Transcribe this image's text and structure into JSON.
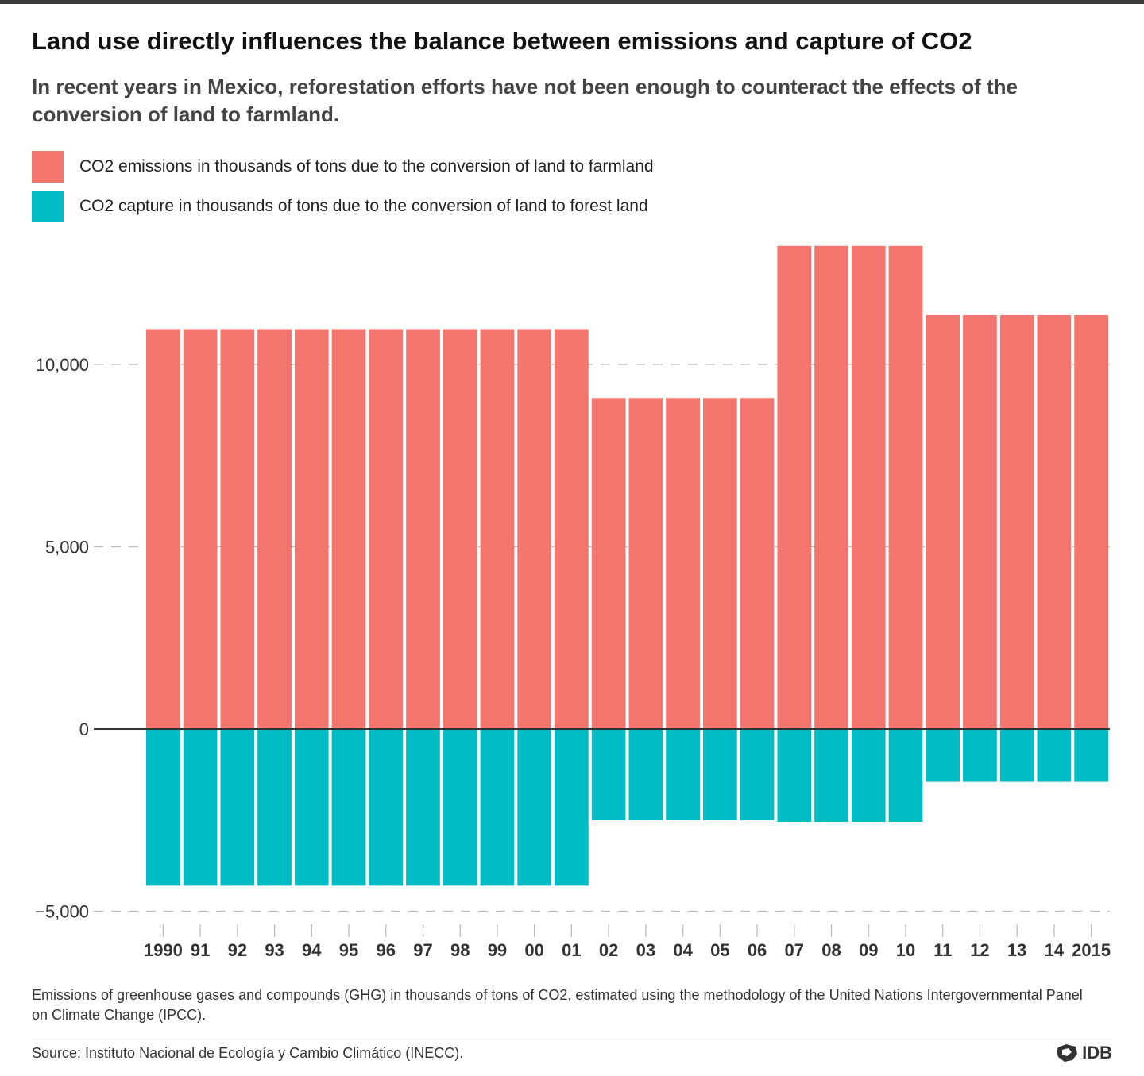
{
  "header": {
    "title": "Land use directly influences the balance between emissions and capture of CO2",
    "subtitle": "In recent years in Mexico, reforestation efforts have not been enough to counteract the effects of the conversion of land to farmland."
  },
  "legend": {
    "items": [
      {
        "label": "CO2 emissions in thousands of tons due to the conversion of land to farmland",
        "color": "#f4756d"
      },
      {
        "label": "CO2 capture in thousands of tons due to the conversion of land to forest land",
        "color": "#00bcc4"
      }
    ]
  },
  "chart_data": {
    "type": "bar",
    "title": "Land use directly influences the balance between emissions and capture of CO2",
    "xlabel": "",
    "ylabel": "",
    "ylim": [
      -5000,
      13300
    ],
    "yticks": [
      10000,
      5000,
      0,
      -5000
    ],
    "ytick_labels": [
      "10,000",
      "5,000",
      "0",
      "−5,000"
    ],
    "categories": [
      "1990",
      "91",
      "92",
      "93",
      "94",
      "95",
      "96",
      "97",
      "98",
      "99",
      "00",
      "01",
      "02",
      "03",
      "04",
      "05",
      "06",
      "07",
      "08",
      "09",
      "10",
      "11",
      "12",
      "13",
      "14",
      "2015"
    ],
    "series": [
      {
        "name": "CO2 emissions in thousands of tons due to the conversion of land to farmland",
        "color": "#f4756d",
        "values": [
          10970,
          10970,
          10970,
          10970,
          10970,
          10970,
          10970,
          10970,
          10970,
          10970,
          10970,
          10970,
          9080,
          9080,
          9080,
          9080,
          9080,
          13250,
          13250,
          13250,
          13250,
          11350,
          11350,
          11350,
          11350,
          11350
        ]
      },
      {
        "name": "CO2 capture in thousands of tons due to the conversion of land to forest land",
        "color": "#00bcc4",
        "values": [
          -4300,
          -4300,
          -4300,
          -4300,
          -4300,
          -4300,
          -4300,
          -4300,
          -4300,
          -4300,
          -4300,
          -4300,
          -2500,
          -2500,
          -2500,
          -2500,
          -2500,
          -2550,
          -2550,
          -2550,
          -2550,
          -1450,
          -1450,
          -1450,
          -1450,
          -1450
        ]
      }
    ],
    "grid": true,
    "gridline_color": "#bbbbbb",
    "zero_line_color": "#333333"
  },
  "footer": {
    "note": "Emissions of greenhouse gases and compounds (GHG) in thousands of tons of CO2, estimated using the methodology of the United Nations Intergovernmental Panel on Climate Change (IPCC).",
    "source": "Source: Instituto Nacional de Ecología y Cambio Climático (INECC).",
    "logo_text": "IDB"
  }
}
